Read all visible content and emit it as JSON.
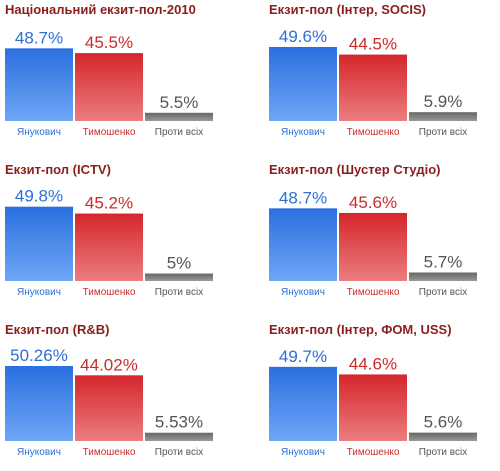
{
  "colors": {
    "title": "#8b1d1d",
    "blue": "#2a6fe0",
    "red": "#d4262b",
    "gray": "#666666",
    "blue_text": "#2e6fd6",
    "red_text": "#cc2a2a",
    "gray_text": "#555555"
  },
  "chart_data": [
    {
      "type": "bar",
      "title": "Національний екзит-пол-2010",
      "categories": [
        "Янукович",
        "Тимошенко",
        "Проти всіх"
      ],
      "values": [
        48.7,
        45.5,
        5.5
      ],
      "value_labels": [
        "48.7%",
        "45.5%",
        "5.5%"
      ],
      "ylim": [
        0,
        50.26
      ]
    },
    {
      "type": "bar",
      "title": "Екзит-пол (Інтер, SOCIS)",
      "categories": [
        "Янукович",
        "Тимошенко",
        "Проти всіх"
      ],
      "values": [
        49.6,
        44.5,
        5.9
      ],
      "value_labels": [
        "49.6%",
        "44.5%",
        "5.9%"
      ],
      "ylim": [
        0,
        50.26
      ]
    },
    {
      "type": "bar",
      "title": "Екзит-пол (ICTV)",
      "categories": [
        "Янукович",
        "Тимошенко",
        "Проти всіх"
      ],
      "values": [
        49.8,
        45.2,
        5
      ],
      "value_labels": [
        "49.8%",
        "45.2%",
        "5%"
      ],
      "ylim": [
        0,
        50.26
      ]
    },
    {
      "type": "bar",
      "title": "Екзит-пол (Шустер Студіо)",
      "categories": [
        "Янукович",
        "Тимошенко",
        "Проти всіх"
      ],
      "values": [
        48.7,
        45.6,
        5.7
      ],
      "value_labels": [
        "48.7%",
        "45.6%",
        "5.7%"
      ],
      "ylim": [
        0,
        50.26
      ]
    },
    {
      "type": "bar",
      "title": "Екзит-пол (R&B)",
      "categories": [
        "Янукович",
        "Тимошенко",
        "Проти всіх"
      ],
      "values": [
        50.26,
        44.02,
        5.53
      ],
      "value_labels": [
        "50.26%",
        "44.02%",
        "5.53%"
      ],
      "ylim": [
        0,
        50.26
      ]
    },
    {
      "type": "bar",
      "title": "Екзит-пол (Інтер, ФОМ, USS)",
      "categories": [
        "Янукович",
        "Тимошенко",
        "Проти всіх"
      ],
      "values": [
        49.7,
        44.6,
        5.6
      ],
      "value_labels": [
        "49.7%",
        "44.6%",
        "5.6%"
      ],
      "ylim": [
        0,
        50.26
      ]
    }
  ]
}
